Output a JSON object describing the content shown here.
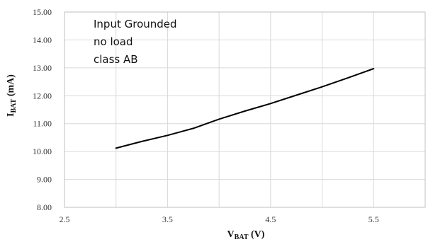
{
  "chart_data": {
    "type": "line",
    "title": "",
    "xlabel": {
      "main": "V",
      "sub": "BAT",
      "unit": " (V)"
    },
    "ylabel": {
      "main": "I",
      "sub": "BAT",
      "unit": " (mA)"
    },
    "xlim": [
      2.5,
      6.0
    ],
    "ylim": [
      8.0,
      15.0
    ],
    "x_ticks": [
      2.5,
      3.5,
      4.5,
      5.5
    ],
    "x_tick_labels": [
      "2.5",
      "3.5",
      "4.5",
      "5.5"
    ],
    "y_ticks": [
      8,
      9,
      10,
      11,
      12,
      13,
      14,
      15
    ],
    "y_tick_labels": [
      "8.00",
      "9.00",
      "10.00",
      "11.00",
      "12.00",
      "13.00",
      "14.00",
      "15.00"
    ],
    "grid": true,
    "annotations": [
      "Input Grounded",
      "no load",
      "class AB"
    ],
    "series": [
      {
        "color": "#000000",
        "x": [
          3.0,
          3.25,
          3.5,
          3.75,
          4.0,
          4.25,
          4.5,
          4.75,
          5.0,
          5.25,
          5.5
        ],
        "y": [
          10.12,
          10.36,
          10.58,
          10.83,
          11.16,
          11.45,
          11.72,
          12.02,
          12.32,
          12.64,
          12.97
        ]
      }
    ]
  }
}
